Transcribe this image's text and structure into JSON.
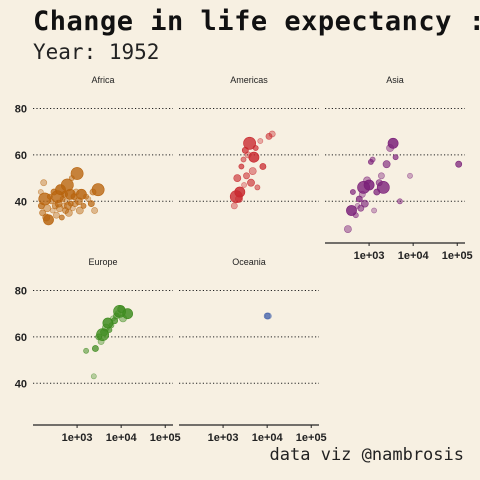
{
  "title": "Change in life expectancy :",
  "subtitle": "Year: 1952",
  "caption": "data viz @nambrosis",
  "chart_data": {
    "type": "scatter",
    "facets": [
      "Africa",
      "Americas",
      "Asia",
      "Europe",
      "Oceania"
    ],
    "x_scale": "log10",
    "xlim": [
      100,
      150000
    ],
    "ylim": [
      22,
      88
    ],
    "x_ticks": [
      1000,
      10000,
      100000
    ],
    "x_tick_labels": [
      "1e+03",
      "1e+04",
      "1e+05"
    ],
    "y_ticks": [
      40,
      60,
      80
    ],
    "y_tick_labels": [
      "40",
      "60",
      "80"
    ],
    "grid": "horizontal dotted",
    "colors": {
      "Africa": "#b8640e",
      "Americas": "#c8282e",
      "Asia": "#7a1f78",
      "Europe": "#3e8b1f",
      "Oceania": "#3a5ba8"
    },
    "series": [
      {
        "name": "Africa",
        "points": [
          {
            "x": 150,
            "y": 44
          },
          {
            "x": 155,
            "y": 38
          },
          {
            "x": 165,
            "y": 35
          },
          {
            "x": 175,
            "y": 48
          },
          {
            "x": 185,
            "y": 41
          },
          {
            "x": 200,
            "y": 33
          },
          {
            "x": 210,
            "y": 37
          },
          {
            "x": 225,
            "y": 32
          },
          {
            "x": 240,
            "y": 42
          },
          {
            "x": 260,
            "y": 40
          },
          {
            "x": 280,
            "y": 36
          },
          {
            "x": 300,
            "y": 44
          },
          {
            "x": 320,
            "y": 38
          },
          {
            "x": 340,
            "y": 34
          },
          {
            "x": 360,
            "y": 42
          },
          {
            "x": 380,
            "y": 39
          },
          {
            "x": 400,
            "y": 37
          },
          {
            "x": 420,
            "y": 45
          },
          {
            "x": 450,
            "y": 33
          },
          {
            "x": 470,
            "y": 41
          },
          {
            "x": 500,
            "y": 38
          },
          {
            "x": 520,
            "y": 43
          },
          {
            "x": 550,
            "y": 36
          },
          {
            "x": 580,
            "y": 40
          },
          {
            "x": 600,
            "y": 47
          },
          {
            "x": 620,
            "y": 38
          },
          {
            "x": 650,
            "y": 35
          },
          {
            "x": 700,
            "y": 43
          },
          {
            "x": 720,
            "y": 39
          },
          {
            "x": 760,
            "y": 50
          },
          {
            "x": 800,
            "y": 37
          },
          {
            "x": 850,
            "y": 42
          },
          {
            "x": 900,
            "y": 39
          },
          {
            "x": 950,
            "y": 44
          },
          {
            "x": 1000,
            "y": 52
          },
          {
            "x": 1100,
            "y": 40
          },
          {
            "x": 1150,
            "y": 36
          },
          {
            "x": 1250,
            "y": 43
          },
          {
            "x": 1400,
            "y": 38
          },
          {
            "x": 1600,
            "y": 42
          },
          {
            "x": 1800,
            "y": 41
          },
          {
            "x": 2100,
            "y": 39
          },
          {
            "x": 2300,
            "y": 44
          },
          {
            "x": 2500,
            "y": 36
          },
          {
            "x": 3000,
            "y": 45
          }
        ]
      },
      {
        "name": "Americas",
        "points": [
          {
            "x": 1800,
            "y": 38
          },
          {
            "x": 2000,
            "y": 42
          },
          {
            "x": 2100,
            "y": 50
          },
          {
            "x": 2300,
            "y": 41
          },
          {
            "x": 2400,
            "y": 44
          },
          {
            "x": 2600,
            "y": 55
          },
          {
            "x": 2900,
            "y": 58
          },
          {
            "x": 3000,
            "y": 47
          },
          {
            "x": 3200,
            "y": 62
          },
          {
            "x": 3400,
            "y": 51
          },
          {
            "x": 3700,
            "y": 60
          },
          {
            "x": 4000,
            "y": 65
          },
          {
            "x": 4300,
            "y": 48
          },
          {
            "x": 4700,
            "y": 53
          },
          {
            "x": 5000,
            "y": 59
          },
          {
            "x": 5500,
            "y": 63
          },
          {
            "x": 6000,
            "y": 46
          },
          {
            "x": 7000,
            "y": 66
          },
          {
            "x": 8000,
            "y": 55
          },
          {
            "x": 11000,
            "y": 68
          },
          {
            "x": 13000,
            "y": 69
          }
        ]
      },
      {
        "name": "Asia",
        "points": [
          {
            "x": 330,
            "y": 28
          },
          {
            "x": 400,
            "y": 36
          },
          {
            "x": 430,
            "y": 44
          },
          {
            "x": 500,
            "y": 34
          },
          {
            "x": 550,
            "y": 38
          },
          {
            "x": 600,
            "y": 41
          },
          {
            "x": 650,
            "y": 37
          },
          {
            "x": 700,
            "y": 43
          },
          {
            "x": 750,
            "y": 46
          },
          {
            "x": 800,
            "y": 39
          },
          {
            "x": 900,
            "y": 49
          },
          {
            "x": 1000,
            "y": 47
          },
          {
            "x": 1100,
            "y": 57
          },
          {
            "x": 1200,
            "y": 58
          },
          {
            "x": 1300,
            "y": 36
          },
          {
            "x": 1500,
            "y": 44
          },
          {
            "x": 1700,
            "y": 48
          },
          {
            "x": 1900,
            "y": 51
          },
          {
            "x": 2100,
            "y": 46
          },
          {
            "x": 2500,
            "y": 56
          },
          {
            "x": 3000,
            "y": 63
          },
          {
            "x": 3500,
            "y": 65
          },
          {
            "x": 4000,
            "y": 59
          },
          {
            "x": 5000,
            "y": 40
          },
          {
            "x": 8500,
            "y": 51
          },
          {
            "x": 108000,
            "y": 56
          }
        ]
      },
      {
        "name": "Europe",
        "points": [
          {
            "x": 1600,
            "y": 54
          },
          {
            "x": 2400,
            "y": 43
          },
          {
            "x": 2600,
            "y": 55
          },
          {
            "x": 3100,
            "y": 60
          },
          {
            "x": 3500,
            "y": 58
          },
          {
            "x": 3800,
            "y": 61
          },
          {
            "x": 4100,
            "y": 62
          },
          {
            "x": 4500,
            "y": 64
          },
          {
            "x": 5000,
            "y": 66
          },
          {
            "x": 5400,
            "y": 63
          },
          {
            "x": 6000,
            "y": 65
          },
          {
            "x": 6500,
            "y": 68
          },
          {
            "x": 7100,
            "y": 67
          },
          {
            "x": 7800,
            "y": 69
          },
          {
            "x": 8500,
            "y": 70
          },
          {
            "x": 9200,
            "y": 71
          },
          {
            "x": 10000,
            "y": 72
          },
          {
            "x": 11000,
            "y": 68
          },
          {
            "x": 14000,
            "y": 70
          }
        ]
      },
      {
        "name": "Oceania",
        "points": [
          {
            "x": 10000,
            "y": 69
          },
          {
            "x": 10600,
            "y": 69
          }
        ]
      }
    ]
  }
}
